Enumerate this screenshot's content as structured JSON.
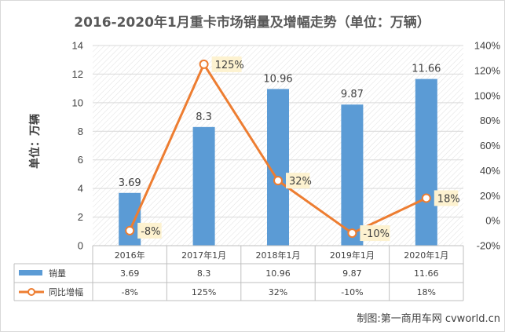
{
  "chart_title": "2016-2020年1月重卡市场销量及增幅走势（单位：万辆）",
  "credit": "制图:第一商用车网 cvworld.cn",
  "colors": {
    "bar": "#5b9bd5",
    "line": "#ed7d31",
    "label_bg": "#fdf2d0",
    "grid": "#d9d9d9",
    "text": "#404040"
  },
  "chart_data": {
    "type": "bar",
    "title": "2016-2020年1月重卡市场销量及增幅走势（单位：万辆）",
    "categories": [
      "2016年",
      "2017年1月",
      "2018年1月",
      "2019年1月",
      "2020年1月"
    ],
    "ylabel": "单位：万辆",
    "ylim": [
      0,
      14
    ],
    "yticks": [
      "0",
      "2",
      "4",
      "6",
      "8",
      "10",
      "12",
      "14"
    ],
    "y2lim": [
      -20,
      140
    ],
    "y2ticks": [
      "-20%",
      "0%",
      "20%",
      "40%",
      "60%",
      "80%",
      "100%",
      "120%",
      "140%"
    ],
    "grid": true,
    "legend_position": "bottom (data table)",
    "series": [
      {
        "name": "销量",
        "type": "bar",
        "axis": "left",
        "values": [
          3.69,
          8.3,
          10.96,
          9.87,
          11.66
        ],
        "labels": [
          "3.69",
          "8.3",
          "10.96",
          "9.87",
          "11.66"
        ]
      },
      {
        "name": "同比增幅",
        "type": "line",
        "axis": "right",
        "values": [
          -8,
          125,
          32,
          -10,
          18
        ],
        "labels": [
          "-8%",
          "125%",
          "32%",
          "-10%",
          "18%"
        ]
      }
    ]
  }
}
